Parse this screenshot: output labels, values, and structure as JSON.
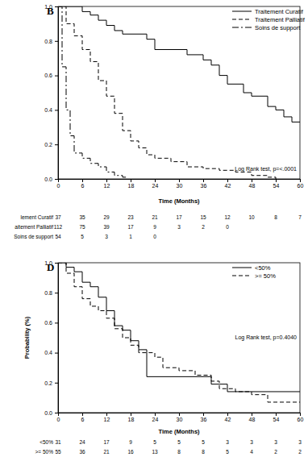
{
  "chart_data": [
    {
      "type": "step",
      "title": "B",
      "x_label": "Time (Months)",
      "annotations": [
        "Log Rank test, p=<.0001"
      ],
      "legend": "top-right",
      "xlim": [
        0,
        60
      ],
      "xticks": [
        0,
        6,
        12,
        18,
        24,
        30,
        36,
        42,
        48,
        54,
        60
      ],
      "ylim": [
        0,
        1
      ],
      "yticks": [
        {
          "value": 0,
          "label": "0.0"
        },
        {
          "value": 0.2,
          "label": "0.2"
        },
        {
          "value": 0.4,
          "label": "0.4"
        },
        {
          "value": 0.6,
          "label": "0.6"
        },
        {
          "value": 0.8,
          "label": "0.8"
        },
        {
          "value": 1,
          "label": "1.0"
        }
      ],
      "series": [
        {
          "name": "Traitement Curatif",
          "color": "#000000",
          "line_style": "solid",
          "x": [
            0,
            6,
            8,
            10,
            12,
            14,
            16,
            22,
            24,
            32,
            36,
            38,
            40,
            42,
            46,
            48,
            52,
            54,
            56,
            58,
            60
          ],
          "values": [
            1.0,
            0.97,
            0.95,
            0.92,
            0.89,
            0.86,
            0.84,
            0.81,
            0.75,
            0.72,
            0.69,
            0.66,
            0.6,
            0.55,
            0.5,
            0.48,
            0.42,
            0.4,
            0.36,
            0.33,
            0.33
          ]
        },
        {
          "name": "Traitement Palliatif",
          "color": "#000000",
          "line_style": "dashed",
          "x": [
            0,
            2,
            4,
            6,
            8,
            10,
            12,
            14,
            16,
            18,
            20,
            22,
            24,
            28,
            32,
            36,
            40,
            44,
            48,
            52,
            54
          ],
          "values": [
            1.0,
            0.9,
            0.83,
            0.75,
            0.68,
            0.57,
            0.48,
            0.38,
            0.28,
            0.22,
            0.18,
            0.14,
            0.12,
            0.1,
            0.07,
            0.06,
            0.05,
            0.04,
            0.02,
            0.01,
            0.0
          ]
        },
        {
          "name": "Soins de support",
          "color": "#000000",
          "line_style": "dashdot",
          "x": [
            0,
            1,
            2,
            3,
            4,
            6,
            8,
            10,
            12,
            14,
            16,
            17
          ],
          "values": [
            1.0,
            0.65,
            0.4,
            0.25,
            0.15,
            0.12,
            0.09,
            0.07,
            0.04,
            0.02,
            0.01,
            0.0
          ]
        }
      ],
      "risk_table": {
        "labels": [
          "lement Curatif",
          "aitement Palliatif",
          "Soins de support"
        ],
        "rows": [
          [
            37,
            35,
            29,
            23,
            21,
            17,
            15,
            12,
            10,
            8,
            7
          ],
          [
            112,
            75,
            39,
            17,
            9,
            3,
            2,
            0
          ],
          [
            54,
            5,
            3,
            1,
            0
          ]
        ]
      }
    },
    {
      "type": "step",
      "title": "D",
      "x_label": "Time (Months)",
      "y_label": "Probability (%)",
      "annotations": [
        "Log Rank test, p=0.4040"
      ],
      "legend": "top-right",
      "xlim": [
        0,
        60
      ],
      "xticks": [
        0,
        6,
        12,
        18,
        24,
        30,
        36,
        42,
        48,
        54,
        60
      ],
      "ylim": [
        0,
        1
      ],
      "yticks": [
        {
          "value": 0,
          "label": "0.0"
        },
        {
          "value": 0.2,
          "label": "0.2"
        },
        {
          "value": 0.4,
          "label": "0.4"
        },
        {
          "value": 0.6,
          "label": "0.6"
        },
        {
          "value": 0.8,
          "label": "0.8"
        },
        {
          "value": 1,
          "label": "1.0"
        }
      ],
      "series": [
        {
          "name": "<50%",
          "color": "#000000",
          "line_style": "solid",
          "x": [
            0,
            2,
            4,
            6,
            8,
            10,
            12,
            14,
            16,
            18,
            20,
            22,
            38,
            42,
            60
          ],
          "values": [
            1.0,
            0.97,
            0.94,
            0.87,
            0.84,
            0.77,
            0.68,
            0.58,
            0.55,
            0.48,
            0.42,
            0.24,
            0.19,
            0.14,
            0.14
          ]
        },
        {
          "name": ">= 50%",
          "color": "#000000",
          "line_style": "dashed",
          "x": [
            0,
            2,
            4,
            6,
            8,
            10,
            12,
            14,
            16,
            18,
            20,
            24,
            26,
            30,
            34,
            38,
            40,
            44,
            48,
            52,
            60
          ],
          "values": [
            1.0,
            0.93,
            0.84,
            0.76,
            0.71,
            0.68,
            0.63,
            0.56,
            0.5,
            0.45,
            0.4,
            0.37,
            0.3,
            0.28,
            0.25,
            0.21,
            0.16,
            0.14,
            0.12,
            0.07,
            0.07
          ]
        }
      ],
      "risk_table": {
        "labels": [
          "<50%",
          ">= 50%"
        ],
        "rows": [
          [
            31,
            24,
            17,
            9,
            5,
            5,
            5,
            3,
            3,
            3,
            3
          ],
          [
            55,
            36,
            21,
            16,
            13,
            8,
            8,
            5,
            4,
            2,
            2
          ]
        ]
      }
    }
  ]
}
